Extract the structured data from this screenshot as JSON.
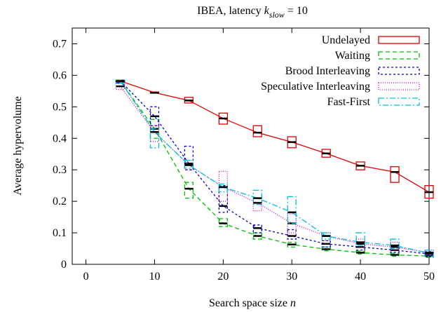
{
  "chart_data": {
    "type": "line",
    "title": {
      "text": "IBEA, latency",
      "variable": "k",
      "subscript": "slow",
      "suffix": "= 10"
    },
    "xlabel": {
      "text": "Search space size",
      "variable": "n"
    },
    "ylabel": "Average hypervolume",
    "x": [
      5,
      10,
      15,
      20,
      25,
      30,
      35,
      40,
      45,
      50
    ],
    "xlim": [
      -2,
      50
    ],
    "xticks": [
      0,
      10,
      20,
      30,
      40,
      50
    ],
    "ylim": [
      0,
      0.75
    ],
    "yticks": [
      0,
      0.1,
      0.2,
      0.3,
      0.4,
      0.5,
      0.6,
      0.7
    ],
    "legend": "top-right",
    "series": [
      {
        "name": "Undelayed",
        "color": "#e00000",
        "dash": "none",
        "values": [
          0.582,
          0.545,
          0.52,
          0.463,
          0.418,
          0.388,
          0.352,
          0.313,
          0.293,
          0.229
        ],
        "box_low": [
          0.578,
          0.543,
          0.512,
          0.445,
          0.405,
          0.37,
          0.34,
          0.3,
          0.26,
          0.21
        ],
        "box_high": [
          0.585,
          0.547,
          0.53,
          0.48,
          0.44,
          0.405,
          0.365,
          0.325,
          0.31,
          0.25
        ]
      },
      {
        "name": "Waiting",
        "color": "#00c000",
        "dash": "6,4",
        "values": [
          0.582,
          0.43,
          0.24,
          0.13,
          0.09,
          0.063,
          0.048,
          0.037,
          0.03,
          0.026
        ],
        "box_low": [
          0.575,
          0.4,
          0.21,
          0.12,
          0.08,
          0.055,
          0.043,
          0.033,
          0.026,
          0.022
        ],
        "box_high": [
          0.585,
          0.46,
          0.26,
          0.145,
          0.1,
          0.07,
          0.055,
          0.042,
          0.035,
          0.03
        ]
      },
      {
        "name": "Brood Interleaving",
        "color": "#0000d0",
        "dash": "3,3",
        "values": [
          0.582,
          0.47,
          0.32,
          0.185,
          0.115,
          0.09,
          0.065,
          0.055,
          0.045,
          0.033
        ],
        "box_low": [
          0.575,
          0.44,
          0.3,
          0.165,
          0.1,
          0.08,
          0.055,
          0.045,
          0.038,
          0.028
        ],
        "box_high": [
          0.585,
          0.5,
          0.375,
          0.25,
          0.125,
          0.11,
          0.075,
          0.065,
          0.055,
          0.04
        ]
      },
      {
        "name": "Speculative Interleaving",
        "color": "#d000d0",
        "dash": "1,2",
        "values": [
          0.565,
          0.42,
          0.315,
          0.245,
          0.195,
          0.13,
          0.09,
          0.065,
          0.055,
          0.037
        ],
        "box_low": [
          0.555,
          0.39,
          0.3,
          0.2,
          0.17,
          0.1,
          0.075,
          0.055,
          0.045,
          0.03
        ],
        "box_high": [
          0.585,
          0.44,
          0.33,
          0.295,
          0.21,
          0.16,
          0.1,
          0.08,
          0.07,
          0.045
        ]
      },
      {
        "name": "Fast-First",
        "color": "#00c0e0",
        "dash": "8,3,2,3",
        "values": [
          0.582,
          0.42,
          0.315,
          0.245,
          0.21,
          0.165,
          0.09,
          0.07,
          0.06,
          0.035
        ],
        "box_low": [
          0.575,
          0.37,
          0.305,
          0.23,
          0.19,
          0.13,
          0.08,
          0.06,
          0.05,
          0.025
        ],
        "box_high": [
          0.585,
          0.43,
          0.33,
          0.255,
          0.235,
          0.215,
          0.1,
          0.1,
          0.08,
          0.045
        ]
      }
    ]
  }
}
